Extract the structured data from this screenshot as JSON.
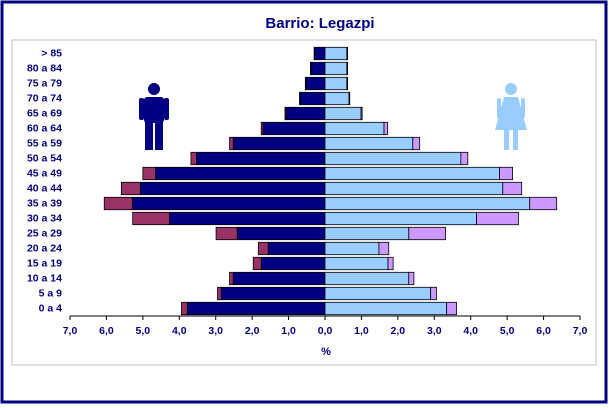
{
  "chart_data": {
    "type": "pyramid",
    "title": "Barrio: Legazpi",
    "x_label": "%",
    "categories": [
      "> 85",
      "80 a 84",
      "75 a 79",
      "70 a 74",
      "65 a 69",
      "60 a 64",
      "55 a 59",
      "50 a 54",
      "45 a 49",
      "40 a 44",
      "35 a 39",
      "30 a 34",
      "25 a 29",
      "20 a 24",
      "15 a 19",
      "10 a 14",
      "5 a 9",
      "0 a 4"
    ],
    "xlim": [
      -7,
      7
    ],
    "xticks": [
      {
        "value": -7,
        "label": "7,0"
      },
      {
        "value": -6,
        "label": "6,0"
      },
      {
        "value": -5,
        "label": "5,0"
      },
      {
        "value": -4,
        "label": "4,0"
      },
      {
        "value": -3,
        "label": "3,0"
      },
      {
        "value": -2,
        "label": "2,0"
      },
      {
        "value": -1,
        "label": "1,0"
      },
      {
        "value": 0,
        "label": "0,0"
      },
      {
        "value": 1,
        "label": "1,0"
      },
      {
        "value": 2,
        "label": "2,0"
      },
      {
        "value": 3,
        "label": "3,0"
      },
      {
        "value": 4,
        "label": "4,0"
      },
      {
        "value": 5,
        "label": "5,0"
      },
      {
        "value": 6,
        "label": "6,0"
      },
      {
        "value": 7,
        "label": "7,0"
      }
    ],
    "series": [
      {
        "side": "left",
        "color": "#000080",
        "values": [
          0.28,
          0.38,
          0.52,
          0.68,
          1.07,
          1.7,
          2.52,
          3.53,
          4.65,
          5.07,
          5.29,
          4.27,
          2.41,
          1.56,
          1.75,
          2.52,
          2.85,
          3.78
        ]
      },
      {
        "side": "left",
        "color": "#993366",
        "values": [
          0.02,
          0.02,
          0.02,
          0.02,
          0.03,
          0.05,
          0.1,
          0.15,
          0.35,
          0.52,
          0.77,
          1.01,
          0.58,
          0.27,
          0.22,
          0.1,
          0.1,
          0.16
        ]
      },
      {
        "side": "right",
        "color": "#99ccff",
        "values": [
          0.6,
          0.6,
          0.6,
          0.66,
          0.99,
          1.62,
          2.41,
          3.73,
          4.79,
          4.88,
          5.62,
          4.16,
          2.3,
          1.48,
          1.73,
          2.3,
          2.9,
          3.34
        ]
      },
      {
        "side": "right",
        "color": "#cc99ff",
        "values": [
          0.02,
          0.02,
          0.02,
          0.02,
          0.03,
          0.1,
          0.19,
          0.19,
          0.36,
          0.52,
          0.74,
          1.15,
          1.01,
          0.27,
          0.14,
          0.14,
          0.16,
          0.27
        ]
      }
    ]
  }
}
